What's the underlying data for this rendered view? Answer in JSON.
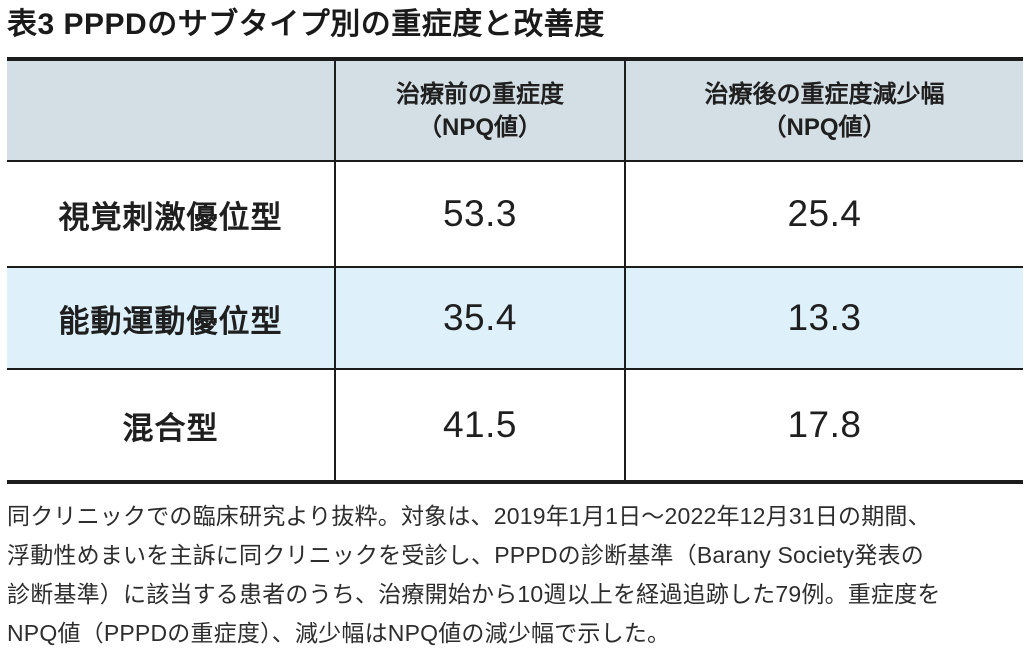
{
  "title": "表3 PPPDのサブタイプ別の重症度と改善度",
  "table": {
    "header": {
      "empty": "",
      "pre_line1": "治療前の重症度",
      "pre_line2": "（NPQ値）",
      "post_line1": "治療後の重症度減少幅",
      "post_line2": "（NPQ値）"
    },
    "rows": [
      {
        "label": "視覚刺激優位型",
        "pre": "53.3",
        "post": "25.4"
      },
      {
        "label": "能動運動優位型",
        "pre": "35.4",
        "post": "13.3"
      },
      {
        "label": "混合型",
        "pre": "41.5",
        "post": "17.8"
      }
    ]
  },
  "footnote_lines": [
    "同クリニックでの臨床研究より抜粋。対象は、2019年1月1日～2022年12月31日の期間、",
    "浮動性めまいを主訴に同クリニックを受診し、PPPDの診断基準（Barany Society発表の",
    "診断基準）に該当する患者のうち、治療開始から10週以上を経過追跡した79例。重症度を",
    "NPQ値（PPPDの重症度）、減少幅はNPQ値の減少幅で示した。"
  ],
  "colors": {
    "header_bg": "#d4dfe5",
    "highlight_row_bg": "#def1fb",
    "border": "#1c1c1c",
    "text": "#1f1f1f"
  }
}
